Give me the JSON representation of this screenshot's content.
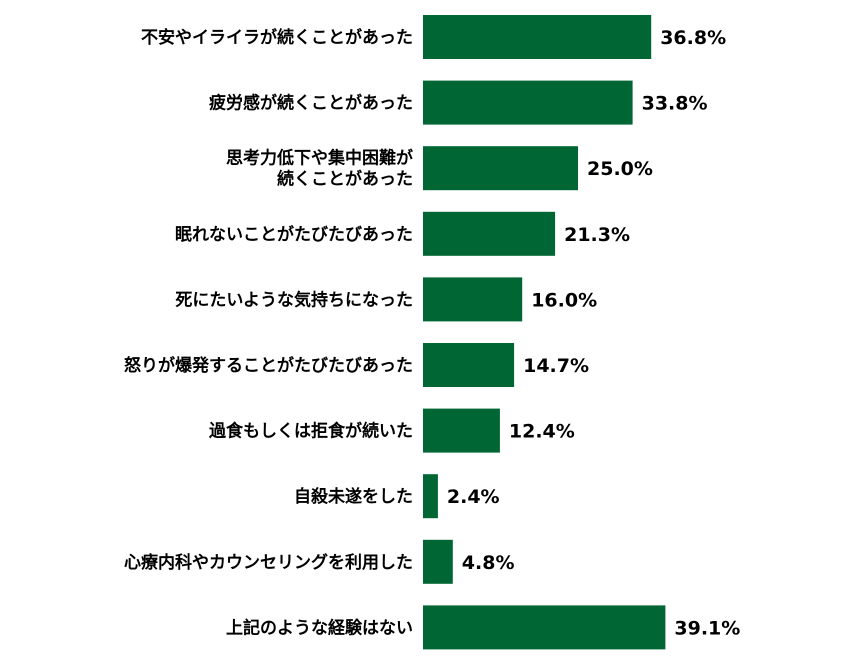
{
  "chart_data": {
    "type": "bar",
    "orientation": "horizontal",
    "categories": [
      [
        "不安やイライラが続くことがあった"
      ],
      [
        "疲労感が続くことがあった"
      ],
      [
        "思考力低下や集中困難が",
        "続くことがあった"
      ],
      [
        "眠れないことがたびたびあった"
      ],
      [
        "死にたいような気持ちになった"
      ],
      [
        "怒りが爆発することがたびたびあった"
      ],
      [
        "過食もしくは拒食が続いた"
      ],
      [
        "自殺未遂をした"
      ],
      [
        "心療内科やカウンセリングを利用した"
      ],
      [
        "上記のような経験はない"
      ]
    ],
    "values": [
      36.8,
      33.8,
      25.0,
      21.3,
      16.0,
      14.7,
      12.4,
      2.4,
      4.8,
      39.1
    ],
    "value_labels": [
      "36.8%",
      "33.8%",
      "25.0%",
      "21.3%",
      "16.0%",
      "14.7%",
      "12.4%",
      "2.4%",
      "4.8%",
      "39.1%"
    ],
    "unit": "%",
    "xlim": [
      0,
      40
    ],
    "grid": false,
    "legend": false,
    "bar_color": "#006633",
    "title": "",
    "xlabel": "",
    "ylabel": ""
  }
}
